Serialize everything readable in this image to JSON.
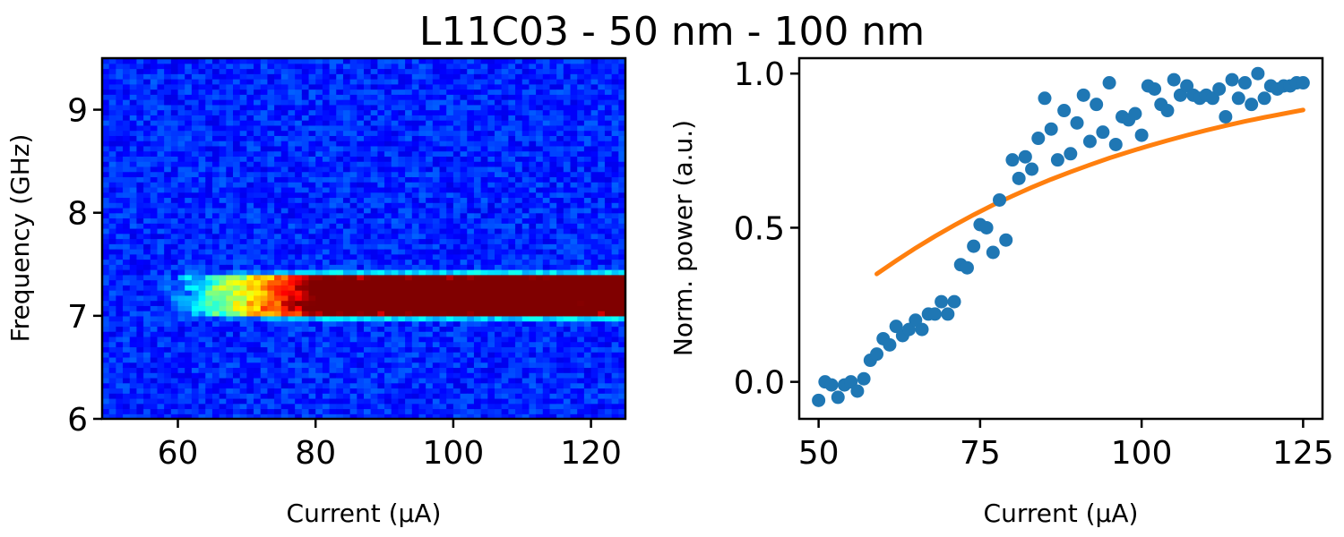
{
  "figure": {
    "title": "L11C03 - 50 nm - 100 nm"
  },
  "chart_data": [
    {
      "type": "heatmap",
      "xlabel": "Current (μA)",
      "ylabel": "Frequency (GHz)",
      "xlim": [
        49,
        125
      ],
      "ylim": [
        6,
        9.5
      ],
      "xticks": [
        60,
        80,
        100,
        120
      ],
      "yticks": [
        6,
        7,
        8,
        9
      ],
      "colormap": "jet",
      "grid": false,
      "band": {
        "center_ghz": 7.2,
        "half_width_ghz": 0.16,
        "onset_current": 58,
        "saturation_current": 82
      }
    },
    {
      "type": "scatter",
      "xlabel": "Current (μA)",
      "ylabel": "Norm. power (a.u.)",
      "xlim": [
        47,
        128
      ],
      "ylim": [
        -0.12,
        1.05
      ],
      "xticks": [
        50,
        75,
        100,
        125
      ],
      "yticks": [
        0.0,
        0.5,
        1.0
      ],
      "grid": false,
      "series": [
        {
          "kind": "points",
          "color": "#1f77b4",
          "x": [
            50,
            51,
            52,
            53,
            54,
            55,
            56,
            57,
            58,
            59,
            60,
            61,
            62,
            63,
            64,
            65,
            66,
            67,
            68,
            69,
            70,
            71,
            72,
            73,
            74,
            75,
            76,
            77,
            78,
            79,
            80,
            81,
            82,
            83,
            84,
            85,
            86,
            87,
            88,
            89,
            90,
            91,
            92,
            93,
            94,
            95,
            96,
            97,
            98,
            99,
            100,
            101,
            102,
            103,
            104,
            105,
            106,
            107,
            108,
            109,
            110,
            111,
            112,
            113,
            114,
            115,
            116,
            117,
            118,
            119,
            120,
            121,
            122,
            123,
            124,
            125
          ],
          "y": [
            -0.06,
            0.0,
            -0.01,
            -0.05,
            -0.01,
            0.0,
            -0.03,
            0.01,
            0.07,
            0.09,
            0.14,
            0.12,
            0.18,
            0.15,
            0.17,
            0.2,
            0.17,
            0.22,
            0.22,
            0.26,
            0.22,
            0.26,
            0.38,
            0.37,
            0.44,
            0.51,
            0.5,
            0.42,
            0.59,
            0.46,
            0.72,
            0.66,
            0.73,
            0.69,
            0.79,
            0.92,
            0.82,
            0.72,
            0.88,
            0.74,
            0.84,
            0.93,
            0.78,
            0.9,
            0.81,
            0.97,
            0.77,
            0.86,
            0.85,
            0.87,
            0.8,
            0.96,
            0.95,
            0.9,
            0.88,
            0.98,
            0.93,
            0.96,
            0.93,
            0.92,
            0.93,
            0.92,
            0.95,
            0.86,
            0.98,
            0.92,
            0.97,
            0.9,
            1.0,
            0.92,
            0.96,
            0.95,
            0.96,
            0.96,
            0.97,
            0.97
          ]
        },
        {
          "kind": "line",
          "color": "#ff7f0e",
          "x": [
            59,
            62,
            65,
            68,
            71,
            74,
            77,
            80,
            83,
            86,
            89,
            92,
            95,
            98,
            101,
            104,
            107,
            110,
            113,
            116,
            119,
            122,
            125
          ],
          "y": [
            0.35,
            0.393,
            0.434,
            0.472,
            0.508,
            0.542,
            0.574,
            0.603,
            0.631,
            0.657,
            0.681,
            0.704,
            0.726,
            0.746,
            0.765,
            0.783,
            0.8,
            0.816,
            0.831,
            0.845,
            0.858,
            0.87,
            0.882
          ]
        }
      ]
    }
  ]
}
